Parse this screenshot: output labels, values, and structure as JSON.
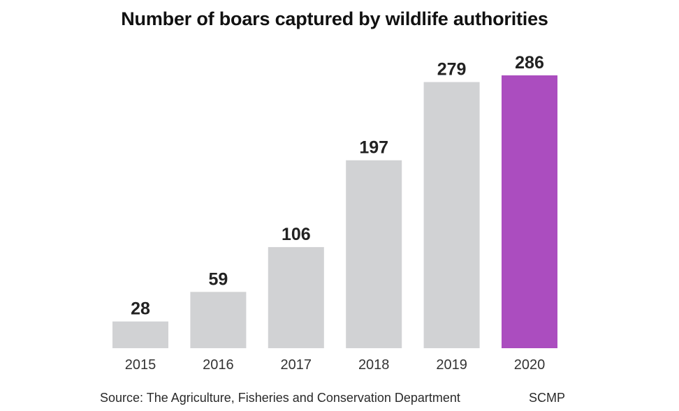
{
  "chart_data": {
    "type": "bar",
    "title": "Number of boars captured by wildlife authorities",
    "categories": [
      "2015",
      "2016",
      "2017",
      "2018",
      "2019",
      "2020"
    ],
    "values": [
      28,
      59,
      106,
      197,
      279,
      286
    ],
    "data_labels": [
      "28",
      "59",
      "106",
      "197",
      "279",
      "286"
    ],
    "xlabel": "",
    "ylabel": "",
    "ylim": [
      0,
      286
    ],
    "grid": false,
    "legend": "none",
    "colors": {
      "default_bar": "#d1d2d4",
      "highlight_bar": "#ab4dbf",
      "label_text": "#222222"
    },
    "highlight_category": "2020"
  },
  "footer": {
    "source": "Source: The Agriculture, Fisheries and Conservation Department",
    "brand": "SCMP"
  }
}
